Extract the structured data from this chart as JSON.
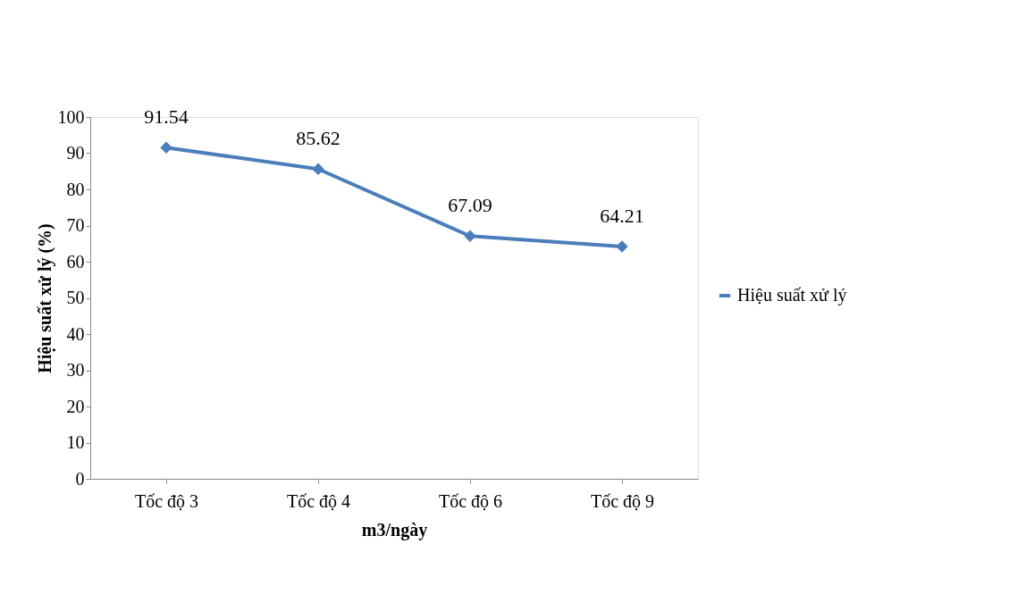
{
  "chart_data": {
    "type": "line",
    "xlabel": "m3/ngày",
    "ylabel": "Hiệu suất xử lý (%)",
    "categories": [
      "Tốc độ 3",
      "Tốc độ  4",
      "Tốc độ 6",
      "Tốc độ  9"
    ],
    "series": [
      {
        "name": "Hiệu suất xử lý",
        "color": "#4a7ebb",
        "values": [
          91.54,
          85.62,
          67.09,
          64.21
        ]
      }
    ],
    "ylim": [
      0,
      100
    ],
    "yticks": [
      0,
      10,
      20,
      30,
      40,
      50,
      60,
      70,
      80,
      90,
      100
    ],
    "data_labels": true,
    "marker": "diamond",
    "line_style": "solid",
    "grid": false,
    "legend": "right"
  }
}
